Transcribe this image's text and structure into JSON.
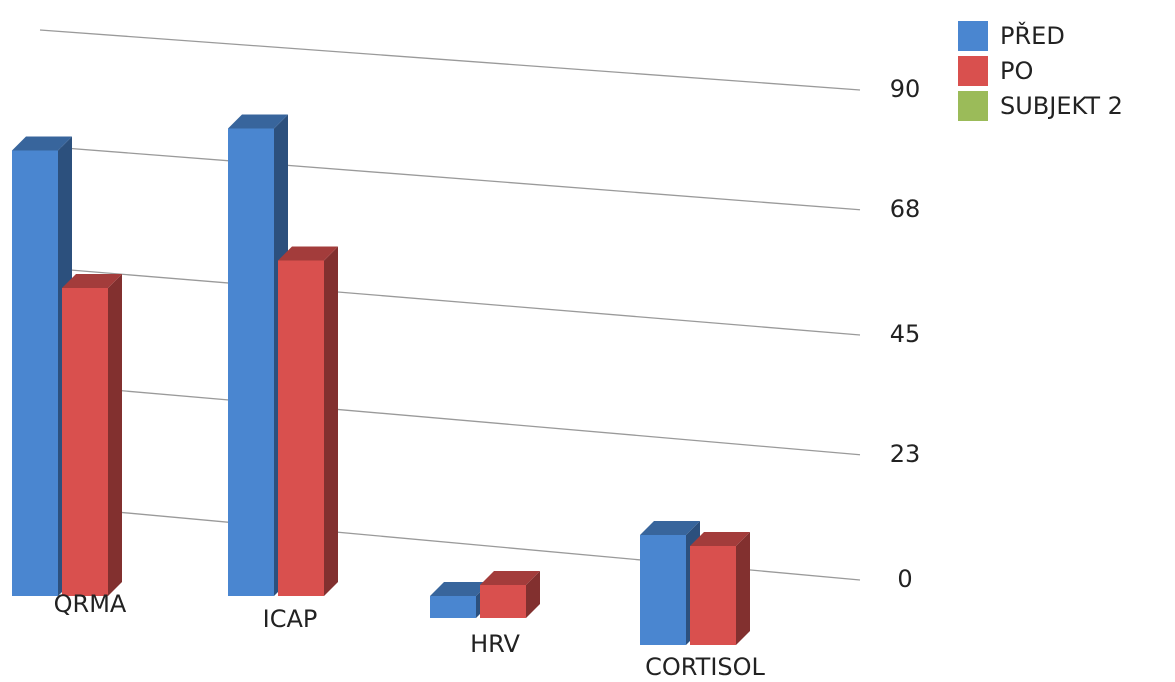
{
  "chart_data": {
    "type": "bar3d",
    "categories": [
      "QRMA",
      "ICAP",
      "HRV",
      "CORTISOL"
    ],
    "series": [
      {
        "name": "PŘED",
        "color": "#4a86d0",
        "values": [
          81,
          85,
          4,
          20
        ]
      },
      {
        "name": "PO",
        "color": "#d9504e",
        "values": [
          56,
          61,
          6,
          18
        ]
      },
      {
        "name": "SUBJEKT 2",
        "color": "#9bbb59",
        "values": [
          null,
          null,
          null,
          null
        ]
      }
    ],
    "ylim": [
      0,
      90
    ],
    "yticks": [
      0,
      23,
      45,
      68,
      90
    ],
    "grid": true,
    "legend": "top-right"
  }
}
